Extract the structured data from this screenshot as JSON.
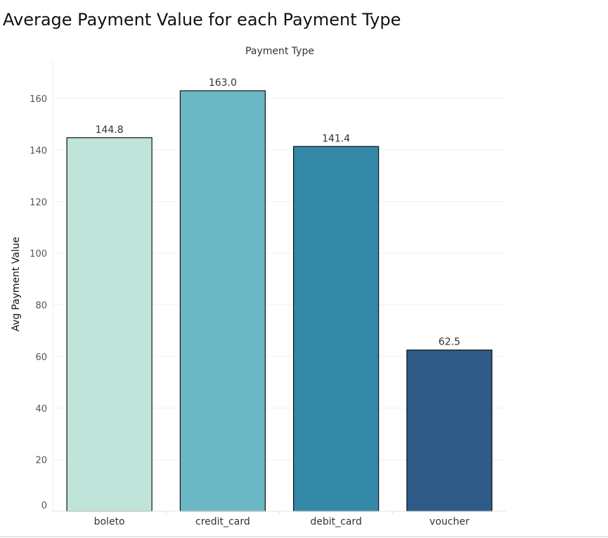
{
  "chart_data": {
    "type": "bar",
    "title": "Average Payment Value for each Payment Type",
    "xlabel": "Payment Type",
    "ylabel": "Avg Payment Value",
    "categories": [
      "boleto",
      "credit_card",
      "debit_card",
      "voucher"
    ],
    "values": [
      144.8,
      163.0,
      141.4,
      62.5
    ],
    "data_labels": [
      "144.8",
      "163.0",
      "141.4",
      "62.5"
    ],
    "colors": [
      "#bfe4da",
      "#6cb7c5",
      "#3589a8",
      "#2e5b87"
    ],
    "ylim": [
      0,
      175
    ],
    "yticks": [
      0,
      20,
      40,
      60,
      80,
      100,
      120,
      140,
      160
    ],
    "grid": true,
    "legend": "none"
  }
}
